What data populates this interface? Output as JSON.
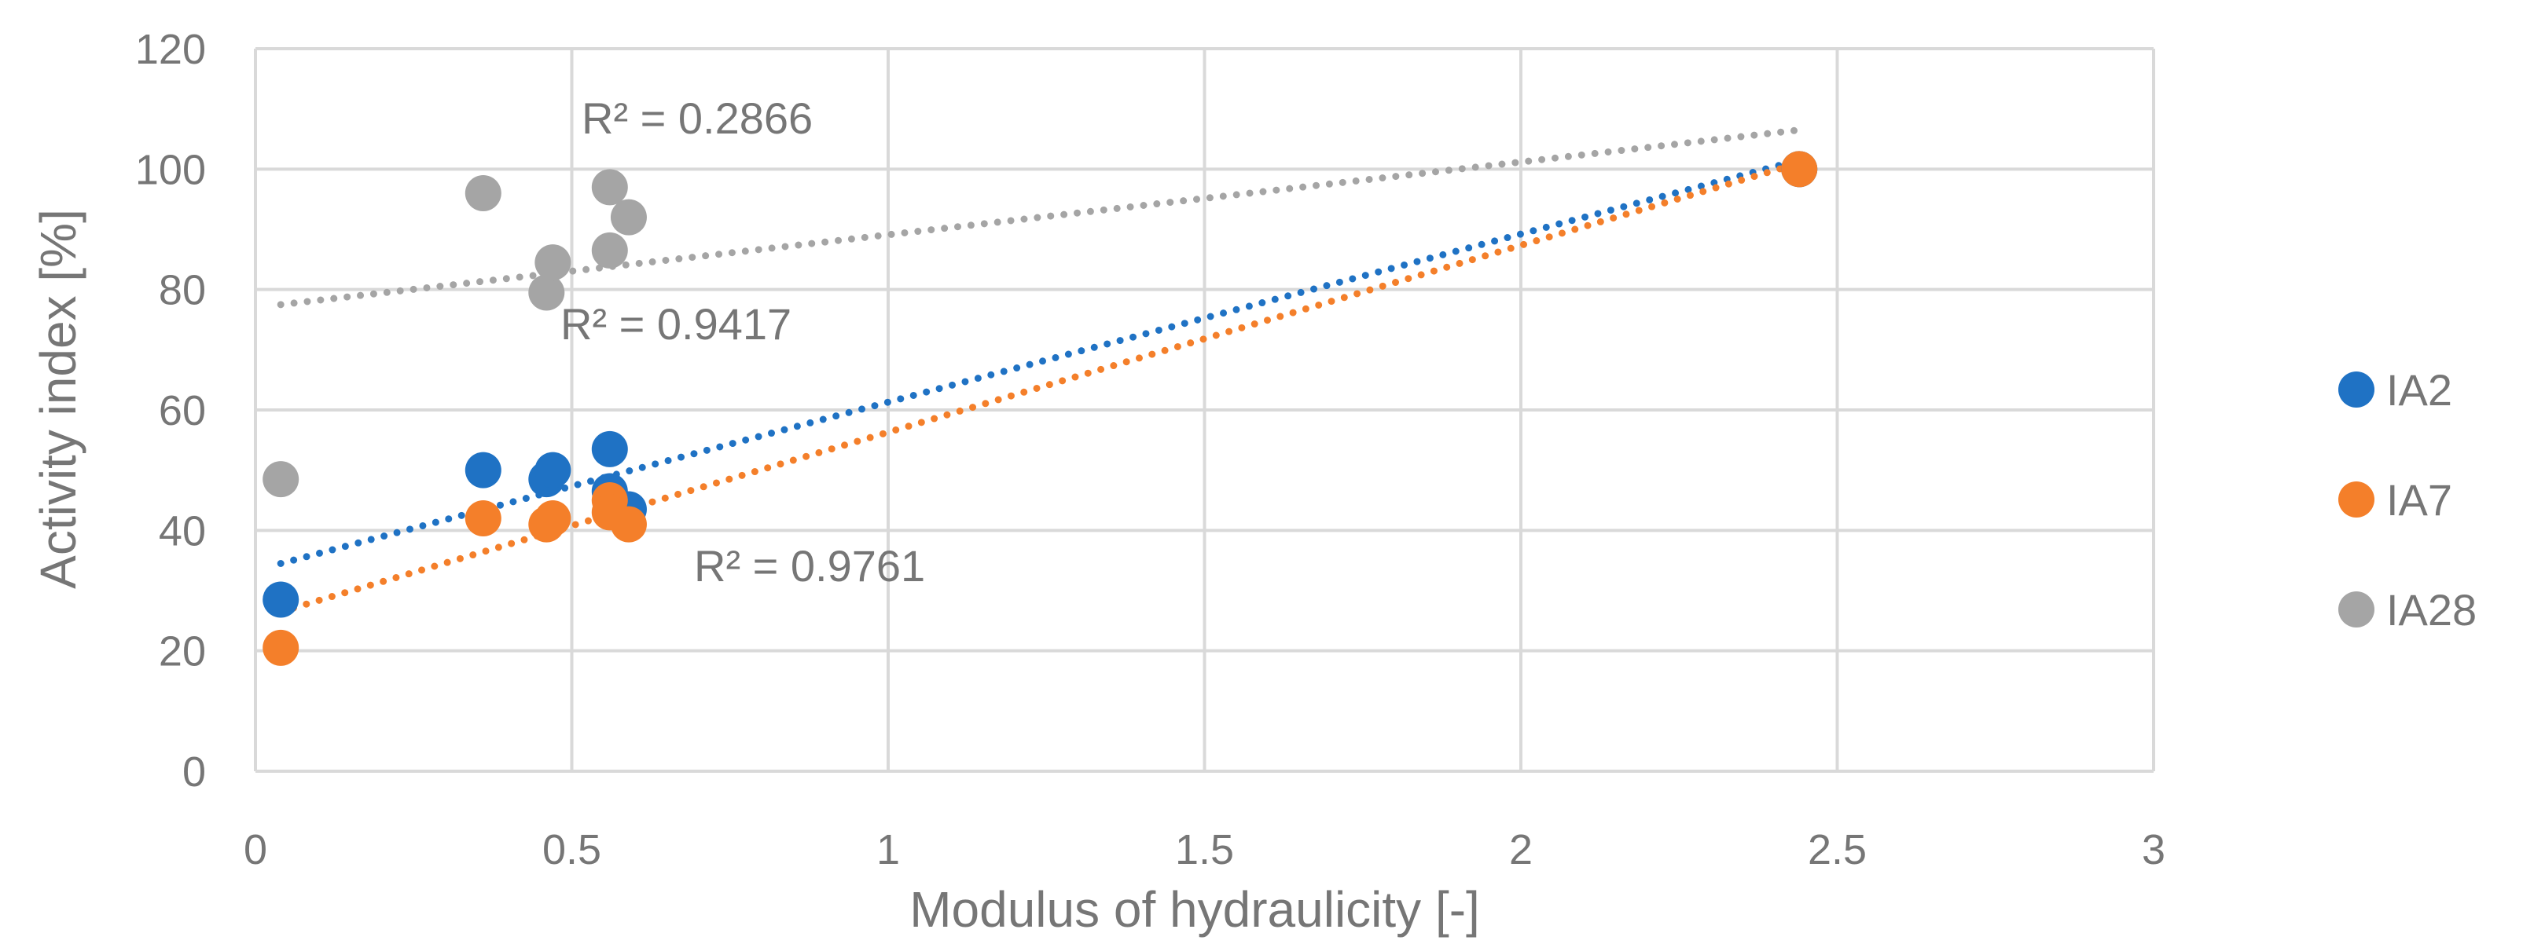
{
  "chart_data": {
    "type": "scatter",
    "title": "",
    "xlabel": "Modulus of hydraulicity [-]",
    "ylabel": "Activity index [%]",
    "xlim": [
      0,
      3
    ],
    "ylim": [
      0,
      120
    ],
    "xticks": [
      0,
      0.5,
      1,
      1.5,
      2,
      2.5,
      3
    ],
    "xtick_labels": [
      "0",
      "0.5",
      "1",
      "1.5",
      "2",
      "2.5",
      "3"
    ],
    "yticks": [
      0,
      20,
      40,
      60,
      80,
      100,
      120
    ],
    "ytick_labels": [
      "0",
      "20",
      "40",
      "60",
      "80",
      "100",
      "120"
    ],
    "grid": true,
    "legend_position": "right",
    "series": [
      {
        "name": "IA2",
        "color": "#1F72C4",
        "points": [
          [
            0.04,
            28.5
          ],
          [
            0.36,
            50
          ],
          [
            0.46,
            48.5
          ],
          [
            0.47,
            50
          ],
          [
            0.56,
            53.5
          ],
          [
            0.56,
            46.5
          ],
          [
            0.59,
            43.5
          ],
          [
            2.44,
            100
          ]
        ],
        "trendline": {
          "type": "linear",
          "x": [
            0.04,
            2.44
          ],
          "y": [
            34.5,
            101.5
          ],
          "r2_label": "R² = 0.9417"
        }
      },
      {
        "name": "IA7",
        "color": "#F47F2A",
        "points": [
          [
            0.04,
            20.5
          ],
          [
            0.36,
            42
          ],
          [
            0.46,
            41
          ],
          [
            0.47,
            42
          ],
          [
            0.56,
            45
          ],
          [
            0.56,
            43
          ],
          [
            0.59,
            41
          ],
          [
            2.44,
            100
          ]
        ],
        "trendline": {
          "type": "linear",
          "x": [
            0.04,
            2.44
          ],
          "y": [
            26.5,
            101
          ],
          "r2_label": "R² = 0.9761"
        }
      },
      {
        "name": "IA28",
        "color": "#A5A5A5",
        "points": [
          [
            0.04,
            48.5
          ],
          [
            0.36,
            96
          ],
          [
            0.46,
            79.5
          ],
          [
            0.47,
            84.5
          ],
          [
            0.56,
            97
          ],
          [
            0.56,
            86.5
          ],
          [
            0.59,
            92
          ],
          [
            2.44,
            100
          ]
        ],
        "trendline": {
          "type": "linear",
          "x": [
            0.04,
            2.44
          ],
          "y": [
            77.5,
            106.5
          ],
          "r2_label": "R² = 0.2866"
        }
      }
    ]
  }
}
